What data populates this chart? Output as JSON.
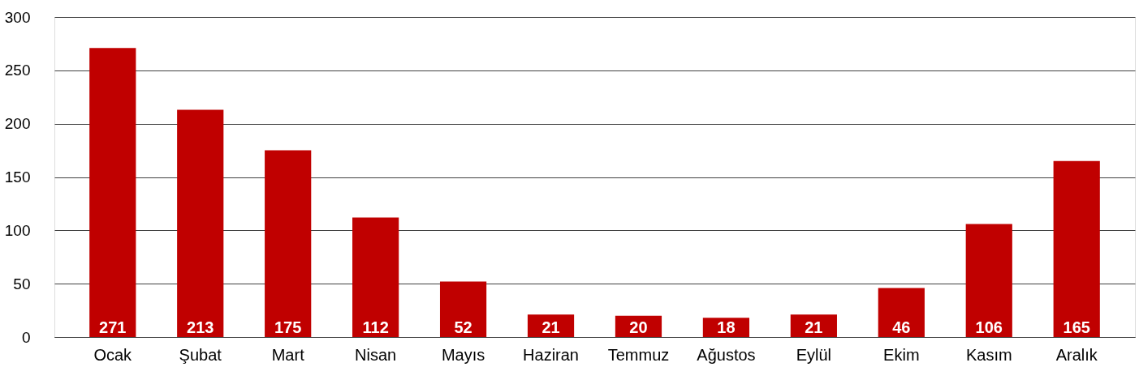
{
  "chart_data": {
    "type": "bar",
    "categories": [
      "Ocak",
      "Şubat",
      "Mart",
      "Nisan",
      "Mayıs",
      "Haziran",
      "Temmuz",
      "Ağustos",
      "Eylül",
      "Ekim",
      "Kasım",
      "Aralık"
    ],
    "values": [
      271,
      213,
      175,
      112,
      52,
      21,
      20,
      18,
      21,
      46,
      106,
      165
    ],
    "color": "#c00000",
    "ylim": [
      0,
      300
    ],
    "yticks": [
      0,
      50,
      100,
      150,
      200,
      250,
      300
    ],
    "grid": "y",
    "data_labels": true
  }
}
